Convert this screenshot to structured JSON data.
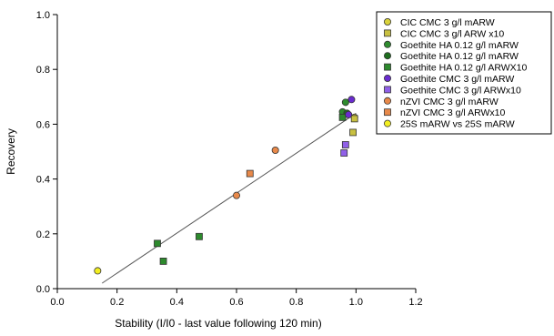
{
  "chart_data": {
    "type": "scatter",
    "xlabel": "Stability (I/I0 - last value following 120 min)",
    "ylabel": "Recovery",
    "xlim": [
      0.0,
      1.2
    ],
    "ylim": [
      0.0,
      1.0
    ],
    "x_ticks": [
      "0.0",
      "0.2",
      "0.4",
      "0.6",
      "0.8",
      "1.0",
      "1.2"
    ],
    "y_ticks": [
      "0.0",
      "0.2",
      "0.4",
      "0.6",
      "0.8",
      "1.0"
    ],
    "grid": false,
    "legend_position": "top-right",
    "trendline": {
      "x": [
        0.15,
        1.0
      ],
      "y": [
        0.02,
        0.64
      ]
    },
    "series": [
      {
        "name": "CIC CMC 3 g/l mARW",
        "marker": "circle",
        "color": "#d9d23a",
        "points": [
          {
            "x": 0.995,
            "y": 0.625
          }
        ]
      },
      {
        "name": "CIC CMC 3 g/l ARW x10",
        "marker": "square",
        "color": "#c8c040",
        "points": [
          {
            "x": 0.99,
            "y": 0.57
          },
          {
            "x": 0.995,
            "y": 0.62
          }
        ]
      },
      {
        "name": "Goethite HA 0.12 g/l mARW",
        "marker": "circle",
        "color": "#2e8b2e",
        "points": [
          {
            "x": 0.955,
            "y": 0.645
          },
          {
            "x": 0.965,
            "y": 0.68
          }
        ]
      },
      {
        "name": "Goethite HA 0.12 g/l mARW",
        "marker": "circle",
        "color": "#1f6e1f",
        "points": [
          {
            "x": 0.97,
            "y": 0.64
          }
        ]
      },
      {
        "name": "Goethite HA 0.12 g/l ARWX10",
        "marker": "square",
        "color": "#2d8a2d",
        "points": [
          {
            "x": 0.335,
            "y": 0.165
          },
          {
            "x": 0.355,
            "y": 0.1
          },
          {
            "x": 0.475,
            "y": 0.19
          },
          {
            "x": 0.955,
            "y": 0.625
          }
        ]
      },
      {
        "name": "Goethite CMC 3 g/l mARW",
        "marker": "circle",
        "color": "#6a2bd0",
        "points": [
          {
            "x": 0.985,
            "y": 0.69
          },
          {
            "x": 0.975,
            "y": 0.635
          }
        ]
      },
      {
        "name": "Goethite CMC 3 g/l ARWx10",
        "marker": "square",
        "color": "#9060e8",
        "points": [
          {
            "x": 0.96,
            "y": 0.495
          },
          {
            "x": 0.965,
            "y": 0.525
          }
        ]
      },
      {
        "name": "nZVI  CMC 3 g/l mARW",
        "marker": "circle",
        "color": "#e8894a",
        "points": [
          {
            "x": 0.6,
            "y": 0.34
          },
          {
            "x": 0.73,
            "y": 0.505
          }
        ]
      },
      {
        "name": "nZVI  CMC 3 g/l ARWx10",
        "marker": "square",
        "color": "#e8894a",
        "points": [
          {
            "x": 0.645,
            "y": 0.42
          }
        ]
      },
      {
        "name": "25S mARW vs 25S mARW",
        "marker": "circle",
        "color": "#f2ee20",
        "points": [
          {
            "x": 0.135,
            "y": 0.065
          }
        ]
      }
    ]
  }
}
